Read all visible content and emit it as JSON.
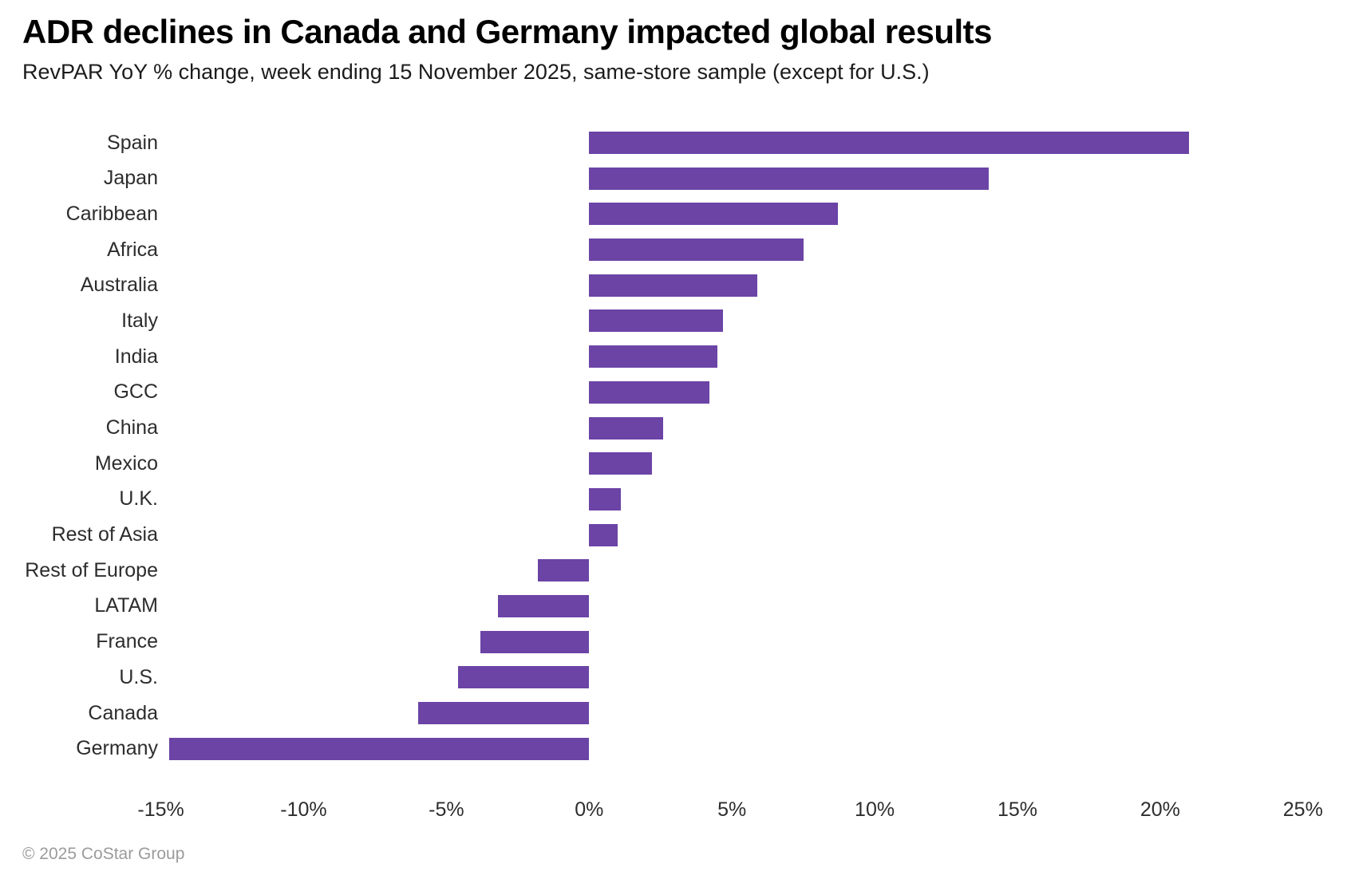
{
  "header": {
    "title": "ADR declines in Canada and Germany impacted global results",
    "subtitle": "RevPAR YoY % change, week ending 15 November 2025, same-store sample (except for U.S.)"
  },
  "footer": {
    "copyright": "© 2025 CoStar Group"
  },
  "chart_data": {
    "type": "bar",
    "orientation": "horizontal",
    "title": "ADR declines in Canada and Germany impacted global results",
    "subtitle": "RevPAR YoY % change, week ending 15 November 2025, same-store sample (except for U.S.)",
    "categories": [
      "Spain",
      "Japan",
      "Caribbean",
      "Africa",
      "Australia",
      "Italy",
      "India",
      "GCC",
      "China",
      "Mexico",
      "U.K.",
      "Rest of Asia",
      "Rest of Europe",
      "LATAM",
      "France",
      "U.S.",
      "Canada",
      "Germany"
    ],
    "values": [
      21.0,
      14.0,
      8.7,
      7.5,
      5.9,
      4.7,
      4.5,
      4.2,
      2.6,
      2.2,
      1.1,
      1.0,
      -1.8,
      -3.2,
      -3.8,
      -4.6,
      -6.0,
      -14.7
    ],
    "value_unit": "%",
    "xlabel": "",
    "ylabel": "",
    "xlim": [
      -15.1,
      25.9
    ],
    "x_tick_values": [
      -15,
      -10,
      -5,
      0,
      5,
      10,
      15,
      20,
      25
    ],
    "x_tick_labels": [
      "-15%",
      "-10%",
      "-5%",
      "0%",
      "5%",
      "10%",
      "15%",
      "20%",
      "25%"
    ],
    "grid": false,
    "legend": false,
    "colors": {
      "bar": "#6b44a6",
      "title_text": "#000000",
      "subtitle_text": "#1c1c1c",
      "axis_text": "#2d2d2d",
      "footer_text": "#9b9b9b",
      "background": "#ffffff"
    }
  }
}
